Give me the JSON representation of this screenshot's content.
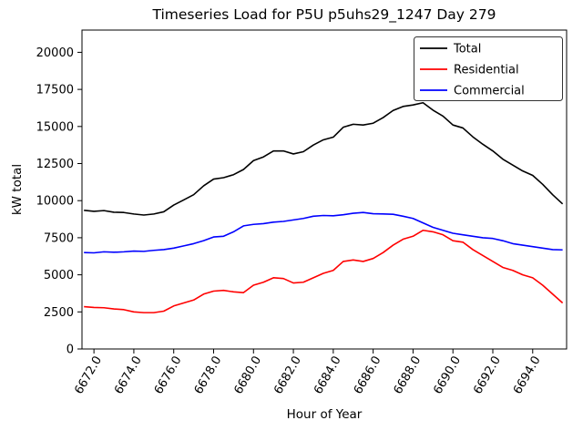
{
  "chart_data": {
    "type": "line",
    "title": "Timeseries Load for P5U p5uhs29_1247  Day 279",
    "xlabel": "Hour of Year",
    "ylabel": "kW total",
    "xlim": [
      6671.4,
      6695.7
    ],
    "ylim": [
      0,
      21500
    ],
    "grid": false,
    "legend_position": "upper right",
    "xticks": [
      6672,
      6674,
      6676,
      6678,
      6680,
      6682,
      6684,
      6686,
      6688,
      6690,
      6692,
      6694
    ],
    "xtick_labels": [
      "6672.0",
      "6674.0",
      "6676.0",
      "6678.0",
      "6680.0",
      "6682.0",
      "6684.0",
      "6686.0",
      "6688.0",
      "6690.0",
      "6692.0",
      "6694.0"
    ],
    "yticks": [
      0,
      2500,
      5000,
      7500,
      10000,
      12500,
      15000,
      17500,
      20000
    ],
    "ytick_labels": [
      "0",
      "2500",
      "5000",
      "7500",
      "10000",
      "12500",
      "15000",
      "17500",
      "20000"
    ],
    "x": [
      6671.5,
      6672.0,
      6672.5,
      6673.0,
      6673.5,
      6674.0,
      6674.5,
      6675.0,
      6675.5,
      6676.0,
      6676.5,
      6677.0,
      6677.5,
      6678.0,
      6678.5,
      6679.0,
      6679.5,
      6680.0,
      6680.5,
      6681.0,
      6681.5,
      6682.0,
      6682.5,
      6683.0,
      6683.5,
      6684.0,
      6684.5,
      6685.0,
      6685.5,
      6686.0,
      6686.5,
      6687.0,
      6687.5,
      6688.0,
      6688.5,
      6689.0,
      6689.5,
      6690.0,
      6690.5,
      6691.0,
      6691.5,
      6692.0,
      6692.5,
      6693.0,
      6693.5,
      6694.0,
      6694.5,
      6695.0,
      6695.5
    ],
    "series": [
      {
        "name": "Total",
        "color": "#000000",
        "values": [
          9350,
          9280,
          9330,
          9220,
          9200,
          9100,
          9030,
          9100,
          9250,
          9700,
          10050,
          10400,
          11000,
          11450,
          11550,
          11750,
          12100,
          12700,
          12950,
          13350,
          13350,
          13150,
          13300,
          13750,
          14100,
          14280,
          14950,
          15150,
          15100,
          15220,
          15600,
          16080,
          16350,
          16450,
          16600,
          16100,
          15700,
          15100,
          14900,
          14300,
          13800,
          13350,
          12800,
          12400,
          12000,
          11700,
          11100,
          10400,
          9780
        ]
      },
      {
        "name": "Residential",
        "color": "#ff0000",
        "values": [
          2850,
          2800,
          2780,
          2700,
          2650,
          2500,
          2450,
          2450,
          2550,
          2900,
          3100,
          3300,
          3700,
          3900,
          3950,
          3850,
          3800,
          4300,
          4500,
          4800,
          4750,
          4450,
          4500,
          4800,
          5100,
          5300,
          5900,
          6000,
          5900,
          6100,
          6500,
          7000,
          7400,
          7600,
          8000,
          7900,
          7700,
          7300,
          7200,
          6700,
          6300,
          5900,
          5500,
          5300,
          5000,
          4800,
          4300,
          3700,
          3100
        ]
      },
      {
        "name": "Commercial",
        "color": "#0000ff",
        "values": [
          6500,
          6480,
          6550,
          6520,
          6550,
          6600,
          6580,
          6650,
          6700,
          6800,
          6950,
          7100,
          7300,
          7550,
          7600,
          7900,
          8300,
          8400,
          8450,
          8550,
          8600,
          8700,
          8800,
          8950,
          9000,
          8980,
          9050,
          9150,
          9200,
          9120,
          9100,
          9080,
          8950,
          8800,
          8500,
          8200,
          8000,
          7800,
          7700,
          7600,
          7500,
          7450,
          7300,
          7100,
          7000,
          6900,
          6800,
          6700,
          6680
        ]
      }
    ]
  }
}
